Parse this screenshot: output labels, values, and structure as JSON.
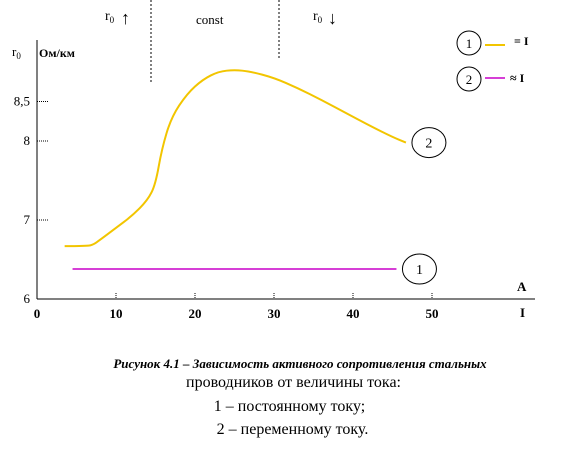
{
  "chart_data": {
    "type": "line",
    "ylabel_symbol": "r",
    "ylabel_sub": "0",
    "yunit": "Ом/км",
    "xunit": "A",
    "xlabel": "I",
    "xlim": [
      0,
      60
    ],
    "ylim": [
      6,
      9.2
    ],
    "xticks": [
      0,
      10,
      20,
      30,
      40,
      50
    ],
    "xtick_labels": [
      "0",
      "10",
      "20",
      "30",
      "40",
      "50"
    ],
    "yticks": [
      6,
      7,
      8,
      8.5
    ],
    "ytick_labels": [
      "6",
      "7",
      "8",
      "8,5"
    ],
    "regions": [
      {
        "label_symbol": "r",
        "label_sub": "0",
        "arrow": "↑"
      },
      {
        "label": "const"
      },
      {
        "label_symbol": "r",
        "label_sub": "0",
        "arrow": "↓"
      }
    ],
    "region_boundaries_x": [
      14,
      30
    ],
    "series": [
      {
        "marker": "2",
        "legend": "≈ I",
        "color": "#f2c500",
        "points": [
          [
            3.5,
            6.67
          ],
          [
            6,
            6.67
          ],
          [
            7,
            6.68
          ],
          [
            8,
            6.75
          ],
          [
            10,
            6.9
          ],
          [
            12,
            7.05
          ],
          [
            14,
            7.25
          ],
          [
            15,
            7.45
          ],
          [
            15.8,
            7.9
          ],
          [
            17,
            8.3
          ],
          [
            19,
            8.6
          ],
          [
            21,
            8.78
          ],
          [
            23,
            8.88
          ],
          [
            25,
            8.9
          ],
          [
            27,
            8.88
          ],
          [
            30,
            8.8
          ],
          [
            33,
            8.67
          ],
          [
            36,
            8.52
          ],
          [
            39,
            8.36
          ],
          [
            42,
            8.2
          ],
          [
            45,
            8.05
          ],
          [
            46.7,
            7.98
          ]
        ]
      },
      {
        "marker": "1",
        "legend": "= I",
        "color": "#d63fd6",
        "points": [
          [
            4.5,
            6.38
          ],
          [
            45.5,
            6.38
          ]
        ]
      }
    ]
  },
  "caption": {
    "line1": "Рисунок 4.1 – Зависимость активного сопротивления стальных",
    "line2": "проводников от величины тока:",
    "line3": "1 – постоянному току;",
    "line4": "2 – переменному току."
  }
}
